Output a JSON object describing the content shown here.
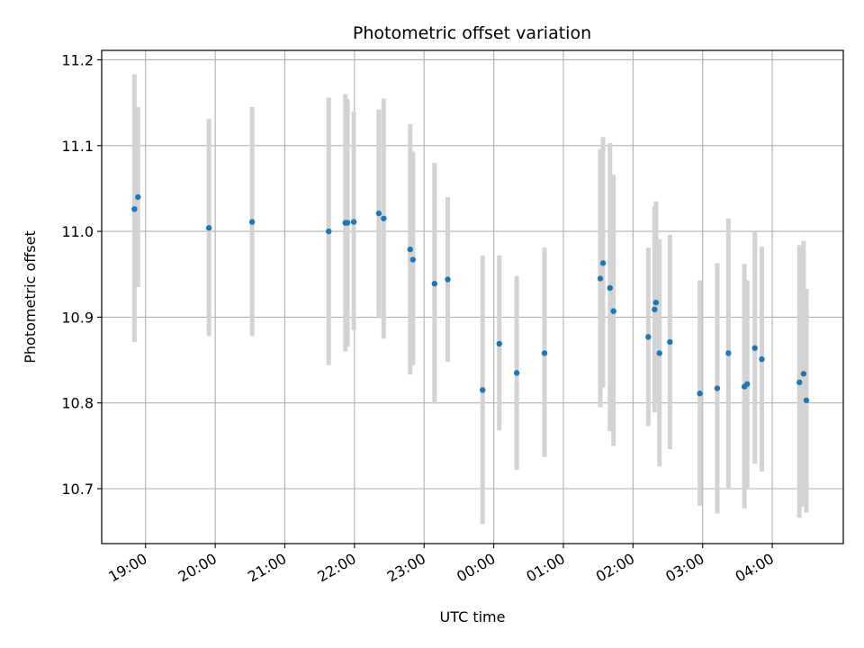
{
  "chart_data": {
    "type": "scatter",
    "title": "Photometric offset variation",
    "xlabel": "UTC time",
    "ylabel": "Photometric offset",
    "x_ticks": [
      {
        "value": 19.0,
        "label": "19:00"
      },
      {
        "value": 20.0,
        "label": "20:00"
      },
      {
        "value": 21.0,
        "label": "21:00"
      },
      {
        "value": 22.0,
        "label": "22:00"
      },
      {
        "value": 23.0,
        "label": "23:00"
      },
      {
        "value": 24.0,
        "label": "00:00"
      },
      {
        "value": 25.0,
        "label": "01:00"
      },
      {
        "value": 26.0,
        "label": "02:00"
      },
      {
        "value": 27.0,
        "label": "03:00"
      },
      {
        "value": 28.0,
        "label": "04:00"
      }
    ],
    "y_ticks": [
      {
        "value": 10.7,
        "label": "10.7"
      },
      {
        "value": 10.8,
        "label": "10.8"
      },
      {
        "value": 10.9,
        "label": "10.9"
      },
      {
        "value": 11.0,
        "label": "11.0"
      },
      {
        "value": 11.1,
        "label": "11.1"
      },
      {
        "value": 11.2,
        "label": "11.2"
      }
    ],
    "xlim": [
      18.37,
      29.02
    ],
    "ylim": [
      10.636,
      11.211
    ],
    "grid": true,
    "point_color": "#1f77b4",
    "errorbar_color": "#d3d3d3",
    "points": [
      {
        "x": 18.84,
        "y": 11.026,
        "ylow": 10.871,
        "yhigh": 11.183
      },
      {
        "x": 18.89,
        "y": 11.04,
        "ylow": 10.935,
        "yhigh": 11.145
      },
      {
        "x": 19.91,
        "y": 11.004,
        "ylow": 10.878,
        "yhigh": 11.131
      },
      {
        "x": 20.53,
        "y": 11.011,
        "ylow": 10.878,
        "yhigh": 11.145
      },
      {
        "x": 21.63,
        "y": 11.0,
        "ylow": 10.844,
        "yhigh": 11.156
      },
      {
        "x": 21.87,
        "y": 11.01,
        "ylow": 10.86,
        "yhigh": 11.16
      },
      {
        "x": 21.9,
        "y": 11.01,
        "ylow": 10.866,
        "yhigh": 11.154
      },
      {
        "x": 21.99,
        "y": 11.011,
        "ylow": 10.885,
        "yhigh": 11.14
      },
      {
        "x": 22.35,
        "y": 11.021,
        "ylow": 10.899,
        "yhigh": 11.142
      },
      {
        "x": 22.42,
        "y": 11.015,
        "ylow": 10.875,
        "yhigh": 11.155
      },
      {
        "x": 22.8,
        "y": 10.979,
        "ylow": 10.833,
        "yhigh": 11.125
      },
      {
        "x": 22.84,
        "y": 10.967,
        "ylow": 10.844,
        "yhigh": 11.093
      },
      {
        "x": 23.15,
        "y": 10.939,
        "ylow": 10.799,
        "yhigh": 11.08
      },
      {
        "x": 23.34,
        "y": 10.944,
        "ylow": 10.848,
        "yhigh": 11.04
      },
      {
        "x": 23.84,
        "y": 10.815,
        "ylow": 10.659,
        "yhigh": 10.972
      },
      {
        "x": 24.08,
        "y": 10.869,
        "ylow": 10.768,
        "yhigh": 10.972
      },
      {
        "x": 24.33,
        "y": 10.835,
        "ylow": 10.722,
        "yhigh": 10.948
      },
      {
        "x": 24.73,
        "y": 10.858,
        "ylow": 10.737,
        "yhigh": 10.981
      },
      {
        "x": 25.53,
        "y": 10.945,
        "ylow": 10.795,
        "yhigh": 11.096
      },
      {
        "x": 25.57,
        "y": 10.963,
        "ylow": 10.818,
        "yhigh": 11.11
      },
      {
        "x": 25.67,
        "y": 10.934,
        "ylow": 10.767,
        "yhigh": 11.103
      },
      {
        "x": 25.72,
        "y": 10.907,
        "ylow": 10.75,
        "yhigh": 11.066
      },
      {
        "x": 26.22,
        "y": 10.877,
        "ylow": 10.773,
        "yhigh": 10.981
      },
      {
        "x": 26.31,
        "y": 10.909,
        "ylow": 10.789,
        "yhigh": 11.029
      },
      {
        "x": 26.33,
        "y": 10.917,
        "ylow": 10.8,
        "yhigh": 11.035
      },
      {
        "x": 26.38,
        "y": 10.858,
        "ylow": 10.726,
        "yhigh": 10.991
      },
      {
        "x": 26.53,
        "y": 10.871,
        "ylow": 10.746,
        "yhigh": 10.996
      },
      {
        "x": 26.96,
        "y": 10.811,
        "ylow": 10.68,
        "yhigh": 10.943
      },
      {
        "x": 27.21,
        "y": 10.817,
        "ylow": 10.671,
        "yhigh": 10.963
      },
      {
        "x": 27.37,
        "y": 10.858,
        "ylow": 10.701,
        "yhigh": 11.015
      },
      {
        "x": 27.6,
        "y": 10.819,
        "ylow": 10.677,
        "yhigh": 10.962
      },
      {
        "x": 27.64,
        "y": 10.822,
        "ylow": 10.701,
        "yhigh": 10.943
      },
      {
        "x": 27.75,
        "y": 10.864,
        "ylow": 10.729,
        "yhigh": 11.0
      },
      {
        "x": 27.85,
        "y": 10.851,
        "ylow": 10.72,
        "yhigh": 10.982
      },
      {
        "x": 28.39,
        "y": 10.824,
        "ylow": 10.666,
        "yhigh": 10.984
      },
      {
        "x": 28.45,
        "y": 10.834,
        "ylow": 10.679,
        "yhigh": 10.989
      },
      {
        "x": 28.49,
        "y": 10.803,
        "ylow": 10.672,
        "yhigh": 10.933
      }
    ]
  }
}
